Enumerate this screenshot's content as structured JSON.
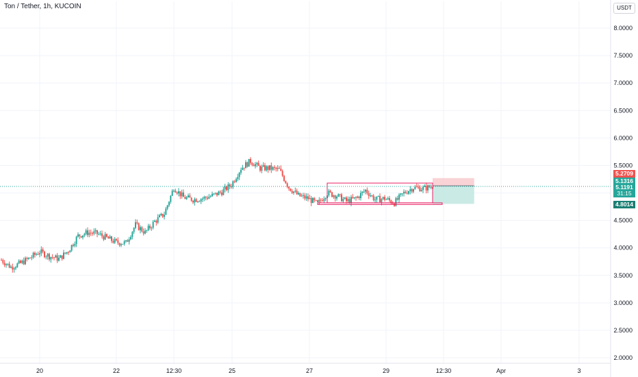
{
  "header": {
    "title": "Ton / Tether, 1h, KUCOIN",
    "currency": "USDT"
  },
  "price_tags": {
    "stop": "5.2709",
    "entry": "5.1316",
    "last": "5.1191",
    "countdown": "31:15",
    "target": "4.8014"
  },
  "colors": {
    "up": "#26a69a",
    "down": "#ef5350",
    "rect": "#e91e63",
    "stop_zone": "#f8c8cc",
    "target_zone": "#bde6df"
  },
  "chart_data": {
    "type": "candlestick",
    "title": "Ton / Tether, 1h, KUCOIN",
    "y_axis": {
      "ticks": [
        "2.0000",
        "2.5000",
        "3.0000",
        "3.5000",
        "4.0000",
        "4.5000",
        "5.0000",
        "5.5000",
        "6.0000",
        "6.5000",
        "7.0000",
        "7.5000",
        "8.0000"
      ],
      "range": [
        1.93,
        8.38
      ]
    },
    "x_axis": {
      "ticks": [
        "20",
        "22",
        "12:30",
        "25",
        "27",
        "29",
        "12:30",
        "Apr",
        "3"
      ]
    },
    "price_path": [
      [
        "19 00:00",
        3.78
      ],
      [
        "19 06:00",
        3.65
      ],
      [
        "19 12:00",
        3.72
      ],
      [
        "19 18:00",
        3.82
      ],
      [
        "20 00:00",
        3.93
      ],
      [
        "20 06:00",
        3.85
      ],
      [
        "20 12:00",
        3.8
      ],
      [
        "20 18:00",
        3.95
      ],
      [
        "21 00:00",
        4.22
      ],
      [
        "21 06:00",
        4.28
      ],
      [
        "21 12:00",
        4.26
      ],
      [
        "21 18:00",
        4.18
      ],
      [
        "22 00:00",
        4.1
      ],
      [
        "22 06:00",
        4.09
      ],
      [
        "22 12:00",
        4.42
      ],
      [
        "22 18:00",
        4.28
      ],
      [
        "23 00:00",
        4.48
      ],
      [
        "23 06:00",
        4.62
      ],
      [
        "23 12:00",
        5.1
      ],
      [
        "23 18:00",
        4.92
      ],
      [
        "24 00:00",
        4.88
      ],
      [
        "24 06:00",
        4.9
      ],
      [
        "24 12:00",
        4.95
      ],
      [
        "24 18:00",
        5.02
      ],
      [
        "25 00:00",
        5.15
      ],
      [
        "25 06:00",
        5.45
      ],
      [
        "25 12:00",
        5.58
      ],
      [
        "25 18:00",
        5.45
      ],
      [
        "26 00:00",
        5.45
      ],
      [
        "26 06:00",
        5.42
      ],
      [
        "26 12:00",
        5.1
      ],
      [
        "26 18:00",
        4.95
      ],
      [
        "27 00:00",
        4.9
      ],
      [
        "27 06:00",
        4.8
      ],
      [
        "27 12:00",
        5.0
      ],
      [
        "27 18:00",
        4.95
      ],
      [
        "28 00:00",
        4.85
      ],
      [
        "28 06:00",
        4.9
      ],
      [
        "28 12:00",
        5.05
      ],
      [
        "28 18:00",
        4.88
      ],
      [
        "29 00:00",
        4.9
      ],
      [
        "29 06:00",
        4.82
      ],
      [
        "29 12:00",
        5.0
      ],
      [
        "29 18:00",
        5.1
      ],
      [
        "30 00:00",
        5.08
      ],
      [
        "30 06:00",
        5.12
      ]
    ],
    "rectangles": [
      {
        "from": "27 12:00",
        "to": "30 06:00",
        "top": 5.18,
        "bottom": 4.82
      },
      {
        "from": "27 06:00",
        "to": "30 12:00",
        "top": 4.82,
        "bottom": 4.79
      }
    ],
    "position": {
      "entry": 5.1316,
      "stop": 5.2709,
      "target": 4.8014,
      "from": "30 06:00",
      "to": "31 08:00"
    },
    "last_price": 5.1191
  }
}
